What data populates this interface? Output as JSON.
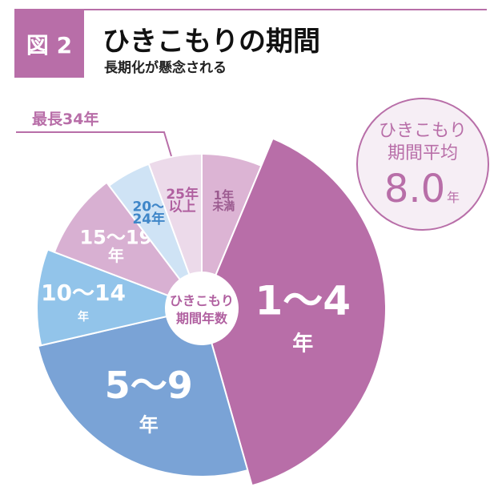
{
  "header": {
    "badge": "図 2",
    "title": "ひきこもりの期間",
    "subtitle": "長期化が懸念される"
  },
  "chart_data": {
    "type": "pie",
    "title": "ひきこもりの期間",
    "center_label": [
      "ひきこもり",
      "期間年数"
    ],
    "categories": [
      "1年未満",
      "1〜4年",
      "5〜9年",
      "10〜14年",
      "15〜19年",
      "20〜24年",
      "25年以上"
    ],
    "values": [
      6.3,
      39.3,
      25.8,
      9.4,
      8.9,
      4.7,
      5.6
    ],
    "labels": [
      [
        "1年",
        "未満"
      ],
      [
        "1〜4",
        "年"
      ],
      [
        "5〜9",
        "年"
      ],
      [
        "10〜14",
        "年"
      ],
      [
        "15〜19",
        "年"
      ],
      [
        "20〜",
        "24年"
      ],
      [
        "25年",
        "以上"
      ]
    ],
    "colors": [
      "#dcb4d4",
      "#b86ea8",
      "#7aa3d6",
      "#92c4ea",
      "#d8b0d2",
      "#cfe3f5",
      "#ecdaea"
    ],
    "label_colors": [
      "#9b5a8f",
      "#ffffff",
      "#ffffff",
      "#ffffff",
      "#ffffff",
      "#3f86c8",
      "#b060a0"
    ],
    "annotation": "最長34年",
    "average": {
      "label1": "ひきこもり",
      "label2": "期間平均",
      "value": "8.0",
      "unit": "年"
    }
  }
}
